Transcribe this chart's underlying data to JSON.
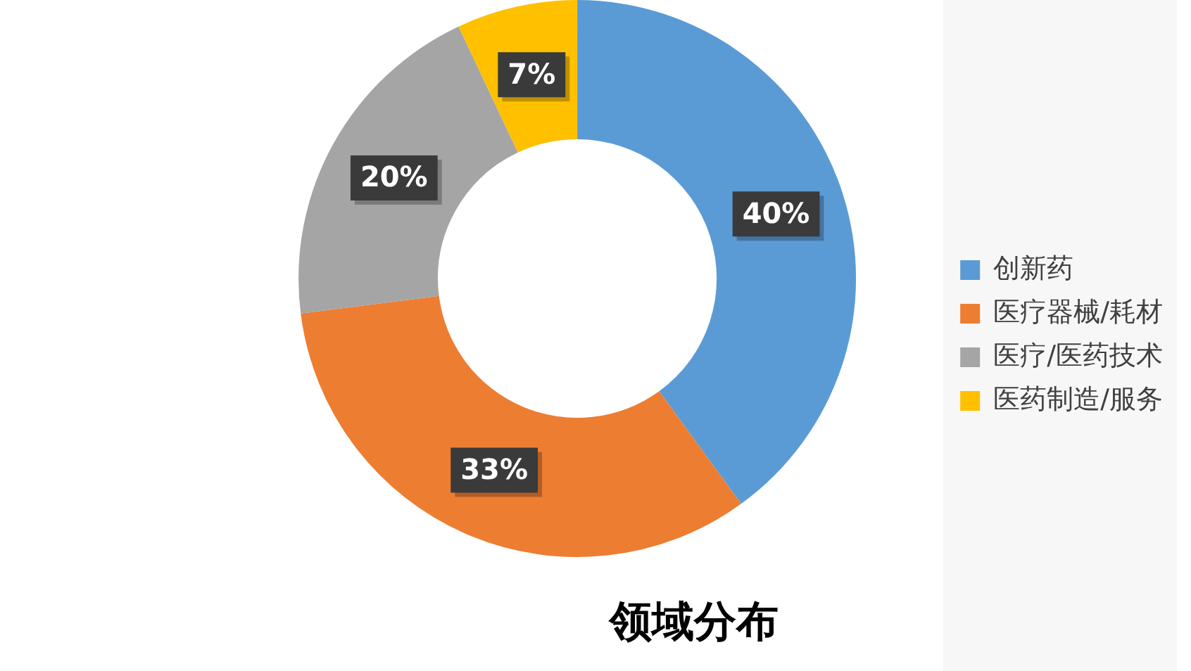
{
  "chart_data": {
    "type": "donut",
    "title": "领域分布",
    "categories": [
      "创新药",
      "医疗器械/耗材",
      "医疗/医药技术",
      "医药制造/服务"
    ],
    "values": [
      40,
      33,
      20,
      7
    ],
    "colors": [
      "#5b9bd5",
      "#ed7d31",
      "#a5a5a5",
      "#ffc000"
    ],
    "value_labels": [
      "40%",
      "33%",
      "20%",
      "7%"
    ],
    "legend": "right"
  }
}
